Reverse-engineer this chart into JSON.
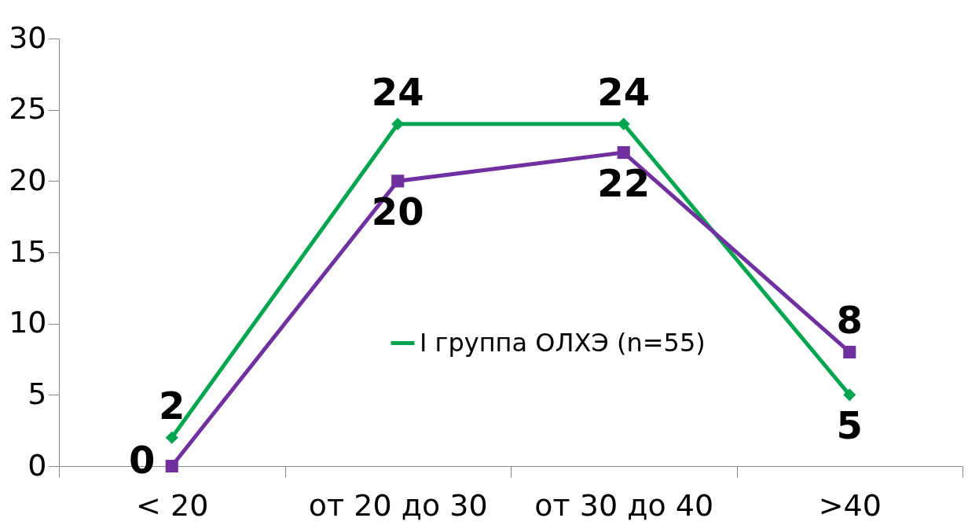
{
  "chart_data": {
    "type": "line",
    "categories": [
      "< 20",
      "от 20 до 30",
      "от 30 до 40",
      ">40"
    ],
    "series": [
      {
        "name": "I группа ОЛХЭ (n=55)",
        "color": "#00a550",
        "values": [
          2,
          24,
          24,
          5
        ],
        "marker": "diamond"
      },
      {
        "color": "#7030a0",
        "values": [
          0,
          20,
          22,
          8
        ],
        "marker": "square"
      }
    ],
    "ylim": [
      0,
      30
    ],
    "yticks": [
      0,
      5,
      10,
      15,
      20,
      25,
      30
    ],
    "grid": false,
    "legend": "bottom",
    "data_labels": true,
    "line_style": "solid"
  }
}
